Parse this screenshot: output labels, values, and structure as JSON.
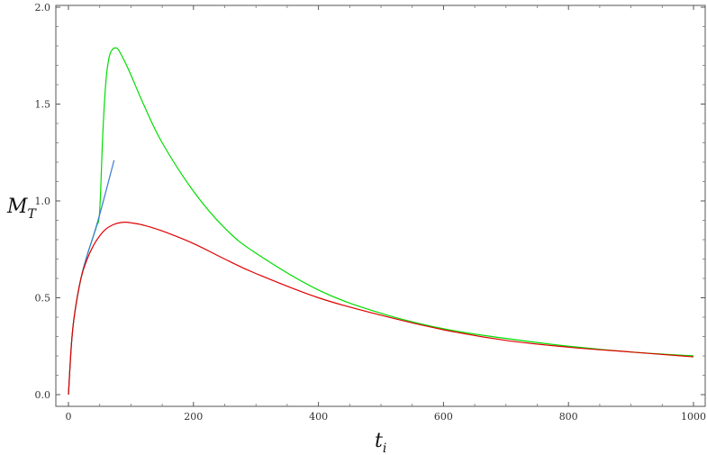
{
  "chart_data": {
    "type": "line",
    "title": "",
    "xlabel": {
      "main": "t",
      "sub": "i"
    },
    "ylabel": {
      "main": "M",
      "sub": "T"
    },
    "xlim": [
      0,
      1000
    ],
    "ylim": [
      0,
      2.0
    ],
    "xticks": [
      0,
      200,
      400,
      600,
      800,
      1000
    ],
    "xtick_labels": [
      "0",
      "200",
      "400",
      "600",
      "800",
      "1000"
    ],
    "yticks": [
      0,
      0.5,
      1.0,
      1.5,
      2.0
    ],
    "ytick_labels": [
      "0.0",
      "0.5",
      "1.0",
      "1.5",
      "2.0"
    ],
    "grid": false,
    "series": [
      {
        "color": "#00dd00",
        "x": [
          0,
          5,
          10,
          20,
          30,
          40,
          45,
          50,
          55,
          60,
          65,
          70,
          75,
          80,
          90,
          100,
          120,
          150,
          200,
          250,
          300,
          400,
          500,
          600,
          700,
          800,
          900,
          1000
        ],
        "y": [
          0,
          0.27,
          0.42,
          0.6,
          0.72,
          0.82,
          0.87,
          0.95,
          1.35,
          1.62,
          1.74,
          1.78,
          1.79,
          1.78,
          1.72,
          1.65,
          1.5,
          1.3,
          1.05,
          0.86,
          0.73,
          0.54,
          0.42,
          0.34,
          0.29,
          0.25,
          0.22,
          0.2
        ]
      },
      {
        "color": "#3a78d8",
        "x": [
          0,
          5,
          10,
          20,
          30,
          40,
          50,
          60,
          73
        ],
        "y": [
          0,
          0.27,
          0.42,
          0.6,
          0.72,
          0.82,
          0.93,
          1.05,
          1.21
        ]
      },
      {
        "color": "#e00000",
        "x": [
          0,
          5,
          10,
          20,
          30,
          40,
          50,
          60,
          70,
          80,
          90,
          100,
          120,
          150,
          200,
          250,
          300,
          400,
          500,
          600,
          700,
          800,
          900,
          1000
        ],
        "y": [
          0,
          0.27,
          0.42,
          0.6,
          0.7,
          0.77,
          0.82,
          0.855,
          0.875,
          0.886,
          0.89,
          0.887,
          0.875,
          0.845,
          0.78,
          0.7,
          0.625,
          0.5,
          0.41,
          0.335,
          0.28,
          0.245,
          0.22,
          0.195
        ]
      }
    ]
  }
}
